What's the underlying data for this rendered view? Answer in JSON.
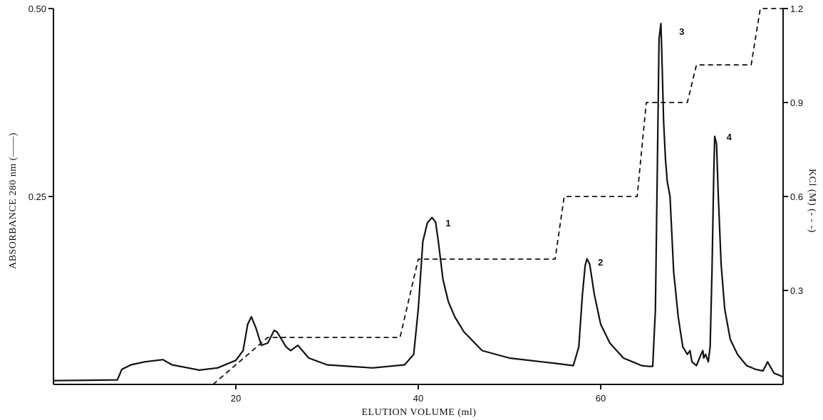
{
  "chart_data": {
    "type": "line",
    "title": "",
    "xlabel": "ELUTION VOLUME (ml)",
    "ylabel_left": "ABSORBANCE 280 nm (——)",
    "ylabel_right": "KCl (M) (- - -)",
    "xlim": [
      0,
      80
    ],
    "ylim_left": [
      0,
      0.5
    ],
    "ylim_right": [
      0,
      1.2
    ],
    "x_ticks": [
      20,
      40,
      60
    ],
    "x_tick_labels": [
      "20",
      "40",
      "60"
    ],
    "y_left_ticks": [
      0.25,
      0.5
    ],
    "y_left_tick_labels": [
      "0.25",
      "0.50"
    ],
    "y_right_ticks": [
      0.3,
      0.6,
      0.9,
      1.2
    ],
    "y_right_tick_labels": [
      "0.3",
      "0.6",
      "0.9",
      "1.2"
    ],
    "grid": false,
    "series": [
      {
        "axis": "left",
        "style": "solid",
        "x": [
          0,
          7,
          7.5,
          8.5,
          10,
          12,
          13,
          16,
          18,
          20,
          20.8,
          21.3,
          21.7,
          22.2,
          22.8,
          23.5,
          24.2,
          24.5,
          25,
          25.5,
          26,
          26.8,
          27.3,
          28,
          30,
          35,
          38.5,
          39.5,
          40,
          40.5,
          41,
          41.5,
          41.9,
          42.2,
          42.7,
          43.3,
          44,
          45,
          47,
          50,
          55,
          57,
          57.6,
          58,
          58.3,
          58.5,
          58.8,
          59.3,
          60,
          61,
          62.5,
          63.5,
          64.5,
          65.3,
          65.7,
          66,
          66.2,
          66.4,
          66.6,
          66.7,
          66.9,
          67.1,
          67.3,
          67.6,
          68,
          68.5,
          69,
          69.5,
          69.8,
          70,
          70.5,
          71,
          71.2,
          71.3,
          71.5,
          71.8,
          72,
          72.2,
          72.4,
          72.5,
          72.7,
          72.9,
          73.2,
          73.6,
          74.2,
          75,
          76,
          77,
          77.8,
          78.3,
          79,
          80
        ],
        "y": [
          0.005,
          0.006,
          0.02,
          0.026,
          0.03,
          0.033,
          0.026,
          0.019,
          0.022,
          0.032,
          0.045,
          0.08,
          0.09,
          0.075,
          0.052,
          0.055,
          0.072,
          0.07,
          0.06,
          0.05,
          0.045,
          0.052,
          0.045,
          0.035,
          0.026,
          0.022,
          0.026,
          0.04,
          0.1,
          0.19,
          0.215,
          0.222,
          0.216,
          0.19,
          0.14,
          0.11,
          0.09,
          0.07,
          0.045,
          0.035,
          0.028,
          0.025,
          0.05,
          0.12,
          0.158,
          0.167,
          0.16,
          0.12,
          0.08,
          0.055,
          0.035,
          0.03,
          0.025,
          0.024,
          0.024,
          0.1,
          0.28,
          0.46,
          0.48,
          0.44,
          0.35,
          0.3,
          0.27,
          0.25,
          0.15,
          0.09,
          0.05,
          0.04,
          0.045,
          0.03,
          0.025,
          0.04,
          0.045,
          0.035,
          0.04,
          0.03,
          0.05,
          0.15,
          0.28,
          0.33,
          0.32,
          0.25,
          0.16,
          0.1,
          0.06,
          0.04,
          0.025,
          0.02,
          0.018,
          0.03,
          0.015,
          0.01
        ]
      },
      {
        "axis": "right",
        "style": "dashed",
        "x": [
          17.5,
          23.5,
          38,
          40,
          55,
          56,
          64,
          65,
          69.5,
          70.5,
          76.5,
          77.5,
          80
        ],
        "y": [
          0,
          0.15,
          0.15,
          0.4,
          0.4,
          0.6,
          0.6,
          0.9,
          0.9,
          1.02,
          1.02,
          1.2,
          1.2
        ]
      }
    ],
    "annotations": [
      {
        "text": "1",
        "x": 43,
        "y": 0.21
      },
      {
        "text": "2",
        "x": 59.7,
        "y": 0.158
      },
      {
        "text": "3",
        "x": 68.6,
        "y": 0.465
      },
      {
        "text": "4",
        "x": 73.8,
        "y": 0.325
      }
    ]
  }
}
